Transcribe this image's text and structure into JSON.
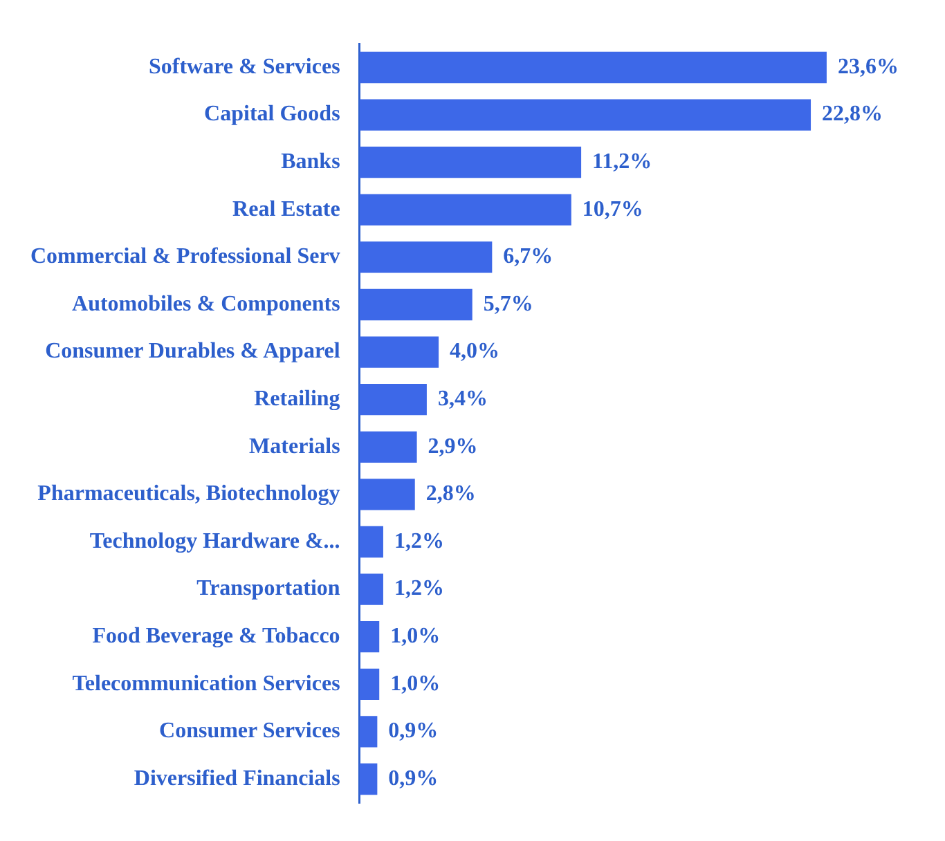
{
  "chart_data": {
    "type": "bar",
    "orientation": "horizontal",
    "categories": [
      "Software & Services",
      "Capital Goods",
      "Banks",
      "Real Estate",
      "Commercial & Professional Serv",
      "Automobiles & Components",
      "Consumer Durables & Apparel",
      "Retailing",
      "Materials",
      "Pharmaceuticals, Biotechnology",
      "Technology Hardware &...",
      "Transportation",
      "Food Beverage & Tobacco",
      "Telecommunication Services",
      "Consumer Services",
      "Diversified Financials"
    ],
    "values": [
      23.6,
      22.8,
      11.2,
      10.7,
      6.7,
      5.7,
      4.0,
      3.4,
      2.9,
      2.8,
      1.2,
      1.2,
      1.0,
      1.0,
      0.9,
      0.9
    ],
    "value_labels": [
      "23,6%",
      "22,8%",
      "11,2%",
      "10,7%",
      "6,7%",
      "5,7%",
      "4,0%",
      "3,4%",
      "2,9%",
      "2,8%",
      "1,2%",
      "1,2%",
      "1,0%",
      "1,0%",
      "0,9%",
      "0,9%"
    ],
    "color": "#3d68e8",
    "legend": false
  }
}
